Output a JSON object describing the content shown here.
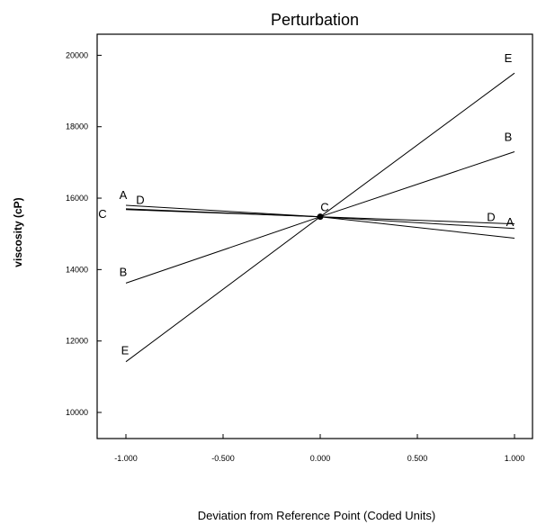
{
  "chart_data": {
    "type": "line",
    "title": "Perturbation",
    "xlabel": "Deviation from Reference Point (Coded Units)",
    "ylabel": "viscosity (cP)",
    "xlim": [
      -1.0,
      1.0
    ],
    "ylim": [
      10000,
      20000
    ],
    "x_ticks": [
      -1.0,
      -0.5,
      0.0,
      0.5,
      1.0
    ],
    "x_tick_labels": [
      "-1.000",
      "-0.500",
      "0.000",
      "0.500",
      "1.000"
    ],
    "y_ticks": [
      10000,
      12000,
      14000,
      16000,
      18000,
      20000
    ],
    "y_tick_labels": [
      "10000",
      "12000",
      "14000",
      "16000",
      "18000",
      "20000"
    ],
    "grid": false,
    "legend": "none",
    "reference_point": {
      "x": 0.0,
      "y": 15480,
      "label": "C"
    },
    "series": [
      {
        "name": "A",
        "x": [
          -1.0,
          1.0
        ],
        "y": [
          15800,
          15150
        ],
        "labels": [
          "A",
          "A"
        ]
      },
      {
        "name": "B",
        "x": [
          -1.0,
          1.0
        ],
        "y": [
          13620,
          17300
        ],
        "labels": [
          "B",
          "B"
        ]
      },
      {
        "name": "C",
        "x": [
          -1.0,
          1.0
        ],
        "y": [
          15700,
          14880
        ],
        "labels": [
          "C"
        ]
      },
      {
        "name": "D",
        "x": [
          -1.0,
          1.0
        ],
        "y": [
          15680,
          15280
        ],
        "labels": [
          "D",
          "D"
        ]
      },
      {
        "name": "E",
        "x": [
          -1.0,
          1.0
        ],
        "y": [
          11420,
          19500
        ],
        "labels": [
          "E",
          "E"
        ]
      }
    ]
  }
}
